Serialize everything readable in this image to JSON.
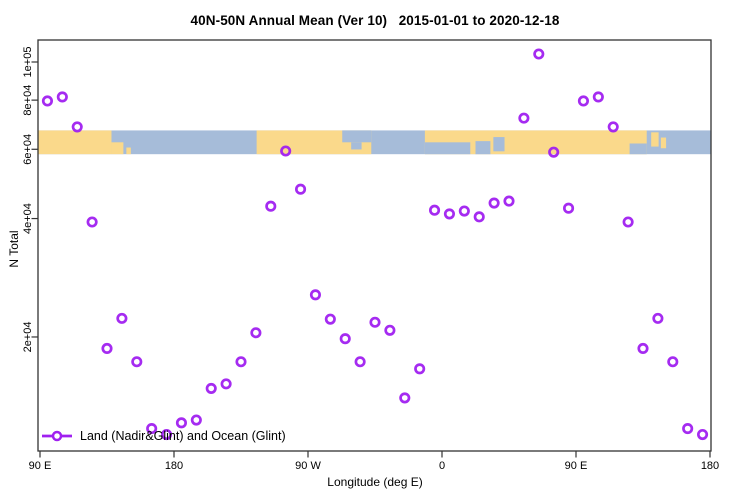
{
  "title": "40N-50N Annual Mean (Ver 10)   2015-01-01 to 2020-12-18",
  "axes": {
    "xlabel": "Longitude (deg E)",
    "ylabel": "N Total"
  },
  "legend": {
    "label": "Land (Nadir&Glint) and Ocean (Glint)",
    "symbol": "open-circle-on-line"
  },
  "colors": {
    "point": "#A020F0",
    "land": "#FAD98B",
    "ocean": "#A6BCD9",
    "frame": "#333333"
  },
  "chart_data": {
    "type": "scatter",
    "title": "40N-50N Annual Mean (Ver 10)   2015-01-01 to 2020-12-18",
    "xlabel": "Longitude (deg E)",
    "ylabel": "N Total",
    "y_scale": "log",
    "x_unit": "degrees east, wrapping 90E through 180 twice",
    "x_range_deg": [
      88.6,
      541.3
    ],
    "x_ticks": [
      {
        "deg": 90,
        "label": "90 E"
      },
      {
        "deg": 180,
        "label": "180"
      },
      {
        "deg": 270,
        "label": "90 W"
      },
      {
        "deg": 360,
        "label": "0"
      },
      {
        "deg": 450,
        "label": "90 E"
      },
      {
        "deg": 540,
        "label": "180"
      }
    ],
    "y_ticks": [
      {
        "value": 20000,
        "label": "2e+04"
      },
      {
        "value": 40000,
        "label": "4e+04"
      },
      {
        "value": 60000,
        "label": "6e+04"
      },
      {
        "value": 80000,
        "label": "8e+04"
      },
      {
        "value": 100000,
        "label": "1e+05"
      }
    ],
    "grid": false,
    "legend_position": "bottom-left-inside",
    "series": [
      {
        "name": "Land (Nadir&Glint) and Ocean (Glint)",
        "marker": "open-circle",
        "color": "#A020F0",
        "points_deg_value": [
          [
            95,
            79600
          ],
          [
            105,
            81500
          ],
          [
            115,
            68400
          ],
          [
            125,
            39200
          ],
          [
            135,
            18700
          ],
          [
            145,
            22300
          ],
          [
            155,
            17300
          ],
          [
            165,
            11700
          ],
          [
            175,
            11300
          ],
          [
            185,
            12100
          ],
          [
            195,
            12300
          ],
          [
            205,
            14800
          ],
          [
            215,
            15200
          ],
          [
            225,
            17300
          ],
          [
            235,
            20500
          ],
          [
            245,
            43000
          ],
          [
            255,
            59400
          ],
          [
            265,
            47500
          ],
          [
            275,
            25600
          ],
          [
            285,
            22200
          ],
          [
            295,
            19800
          ],
          [
            305,
            17300
          ],
          [
            315,
            21800
          ],
          [
            325,
            20800
          ],
          [
            335,
            14000
          ],
          [
            345,
            16600
          ],
          [
            355,
            42000
          ],
          [
            365,
            41100
          ],
          [
            375,
            41800
          ],
          [
            385,
            40400
          ],
          [
            395,
            43800
          ],
          [
            405,
            44300
          ],
          [
            415,
            72000
          ],
          [
            425,
            104800
          ],
          [
            435,
            59000
          ],
          [
            445,
            42500
          ],
          [
            455,
            79600
          ],
          [
            465,
            81500
          ],
          [
            475,
            68400
          ],
          [
            485,
            39200
          ],
          [
            495,
            18700
          ],
          [
            505,
            22300
          ],
          [
            515,
            17300
          ],
          [
            525,
            11700
          ],
          [
            535,
            11300
          ]
        ]
      }
    ],
    "map_band": {
      "description": "land/ocean strip for 40N-50N latitude band",
      "n_top": 67000,
      "n_bottom": 58300,
      "land_color": "#FAD98B",
      "ocean_color": "#A6BCD9",
      "land_segments": [
        {
          "from": 88.6,
          "to": 138,
          "top": 0,
          "h": 1
        },
        {
          "from": 138,
          "to": 146,
          "top": 0.5,
          "h": 0.5
        },
        {
          "from": 148,
          "to": 151,
          "top": 0.72,
          "h": 0.28
        },
        {
          "from": 235.5,
          "to": 312.5,
          "top": 0,
          "h": 1
        },
        {
          "from": 348.5,
          "to": 497.5,
          "top": 0,
          "h": 1
        },
        {
          "from": 500.5,
          "to": 505.5,
          "top": 0.08,
          "h": 0.6
        },
        {
          "from": 507,
          "to": 510.5,
          "top": 0.3,
          "h": 0.45
        }
      ],
      "ocean_patches": [
        {
          "from": 293,
          "to": 312.5,
          "top": 0,
          "h": 0.5
        },
        {
          "from": 299,
          "to": 306,
          "top": 0.5,
          "h": 0.3
        },
        {
          "from": 348.5,
          "to": 379,
          "top": 0.5,
          "h": 0.5
        },
        {
          "from": 382.5,
          "to": 392.5,
          "top": 0.45,
          "h": 0.55
        },
        {
          "from": 394.5,
          "to": 402,
          "top": 0.28,
          "h": 0.6
        },
        {
          "from": 486,
          "to": 497.5,
          "top": 0.55,
          "h": 0.45
        }
      ]
    }
  }
}
